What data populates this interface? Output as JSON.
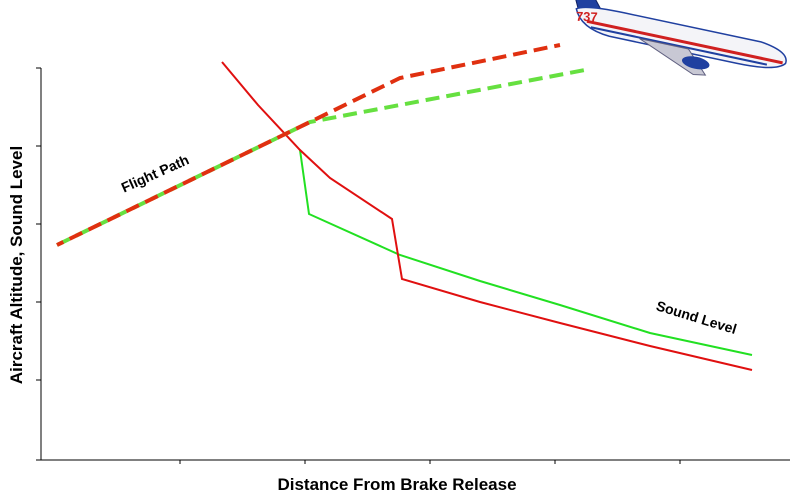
{
  "y_axis_label": "Aircraft Altitude, Sound Level",
  "x_axis_label": "Distance From Brake Release",
  "annotations": {
    "flight_path": "Flight Path",
    "sound_level": "Sound Level"
  },
  "airplane": {
    "model": "737"
  }
}
